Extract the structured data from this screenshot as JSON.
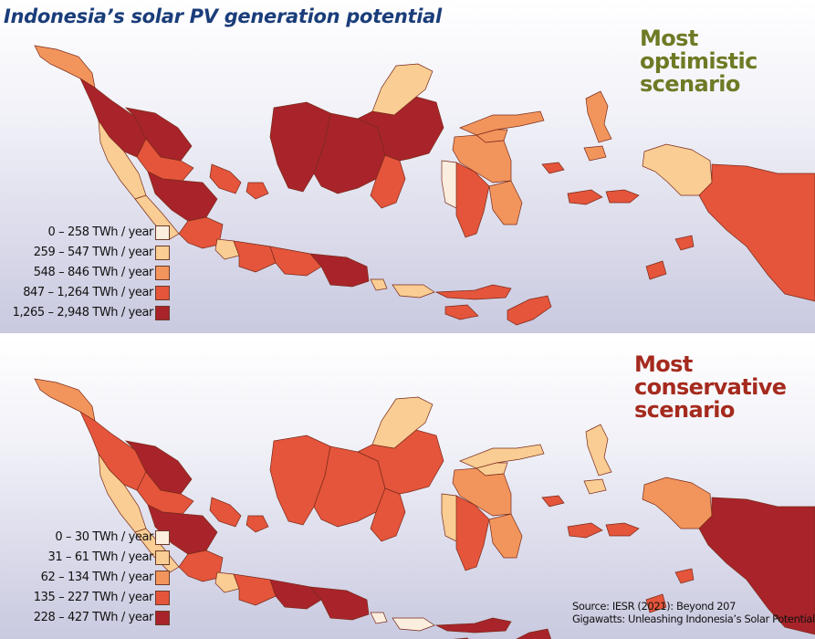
{
  "title": "Indonesia’s solar PV generation potential",
  "colors": {
    "c1": "#fbeede",
    "c2": "#f9cd93",
    "c3": "#f2955c",
    "c4": "#e4553b",
    "c5": "#a8242a"
  },
  "panels": [
    {
      "scenario": "Most optimistic scenario",
      "scenario_lines": [
        "Most",
        "optimistic",
        "scenario"
      ],
      "legend": [
        {
          "label": "0 – 258 TWh / year",
          "class": 1
        },
        {
          "label": "259 – 547 TWh / year",
          "class": 2
        },
        {
          "label": "548 – 846 TWh / year",
          "class": 3
        },
        {
          "label": "847 – 1,264 TWh / year",
          "class": 4
        },
        {
          "label": "1,265 – 2,948 TWh / year",
          "class": 5
        }
      ],
      "regions": {
        "aceh": 3,
        "north-sumatra": 5,
        "riau": 5,
        "west-sumatra": 2,
        "bengkulu": 2,
        "jambi": 4,
        "south-sumatra": 5,
        "lampung": 4,
        "bangka": 4,
        "kepri": 4,
        "west-kalimantan": 5,
        "central-kalimantan": 5,
        "south-kalimantan": 4,
        "east-kalimantan": 5,
        "north-kalimantan": 2,
        "banten": 2,
        "west-java": 4,
        "central-java": 4,
        "east-java": 5,
        "bali": 2,
        "ntb": 2,
        "ntt": 4,
        "north-sulawesi": 3,
        "gorontalo": 3,
        "central-sulawesi": 3,
        "west-sulawesi": 1,
        "south-sulawesi": 4,
        "southeast-sulawesi": 3,
        "north-maluku": 3,
        "maluku": 4,
        "west-papua": 2,
        "papua": 4
      }
    },
    {
      "scenario": "Most conservative scenario",
      "scenario_lines": [
        "Most",
        "conservative",
        "scenario"
      ],
      "legend": [
        {
          "label": "0 – 30 TWh / year",
          "class": 1
        },
        {
          "label": "31 – 61 TWh / year",
          "class": 2
        },
        {
          "label": "62 – 134 TWh / year",
          "class": 3
        },
        {
          "label": "135 – 227 TWh / year",
          "class": 4
        },
        {
          "label": "228 – 427 TWh / year",
          "class": 5
        }
      ],
      "regions": {
        "aceh": 3,
        "north-sumatra": 4,
        "riau": 5,
        "west-sumatra": 2,
        "bengkulu": 2,
        "jambi": 4,
        "south-sumatra": 5,
        "lampung": 4,
        "bangka": 4,
        "kepri": 4,
        "west-kalimantan": 4,
        "central-kalimantan": 4,
        "south-kalimantan": 4,
        "east-kalimantan": 4,
        "north-kalimantan": 2,
        "banten": 2,
        "west-java": 4,
        "central-java": 5,
        "east-java": 5,
        "bali": 1,
        "ntb": 1,
        "ntt": 5,
        "north-sulawesi": 2,
        "gorontalo": 2,
        "central-sulawesi": 3,
        "west-sulawesi": 2,
        "south-sulawesi": 4,
        "southeast-sulawesi": 3,
        "north-maluku": 2,
        "maluku": 4,
        "west-papua": 3,
        "papua": 5
      }
    }
  ],
  "source_lines": [
    "Source: IESR (2021): Beyond 207",
    "Gigawatts: Unleashing Indonesia’s Solar Potential"
  ]
}
